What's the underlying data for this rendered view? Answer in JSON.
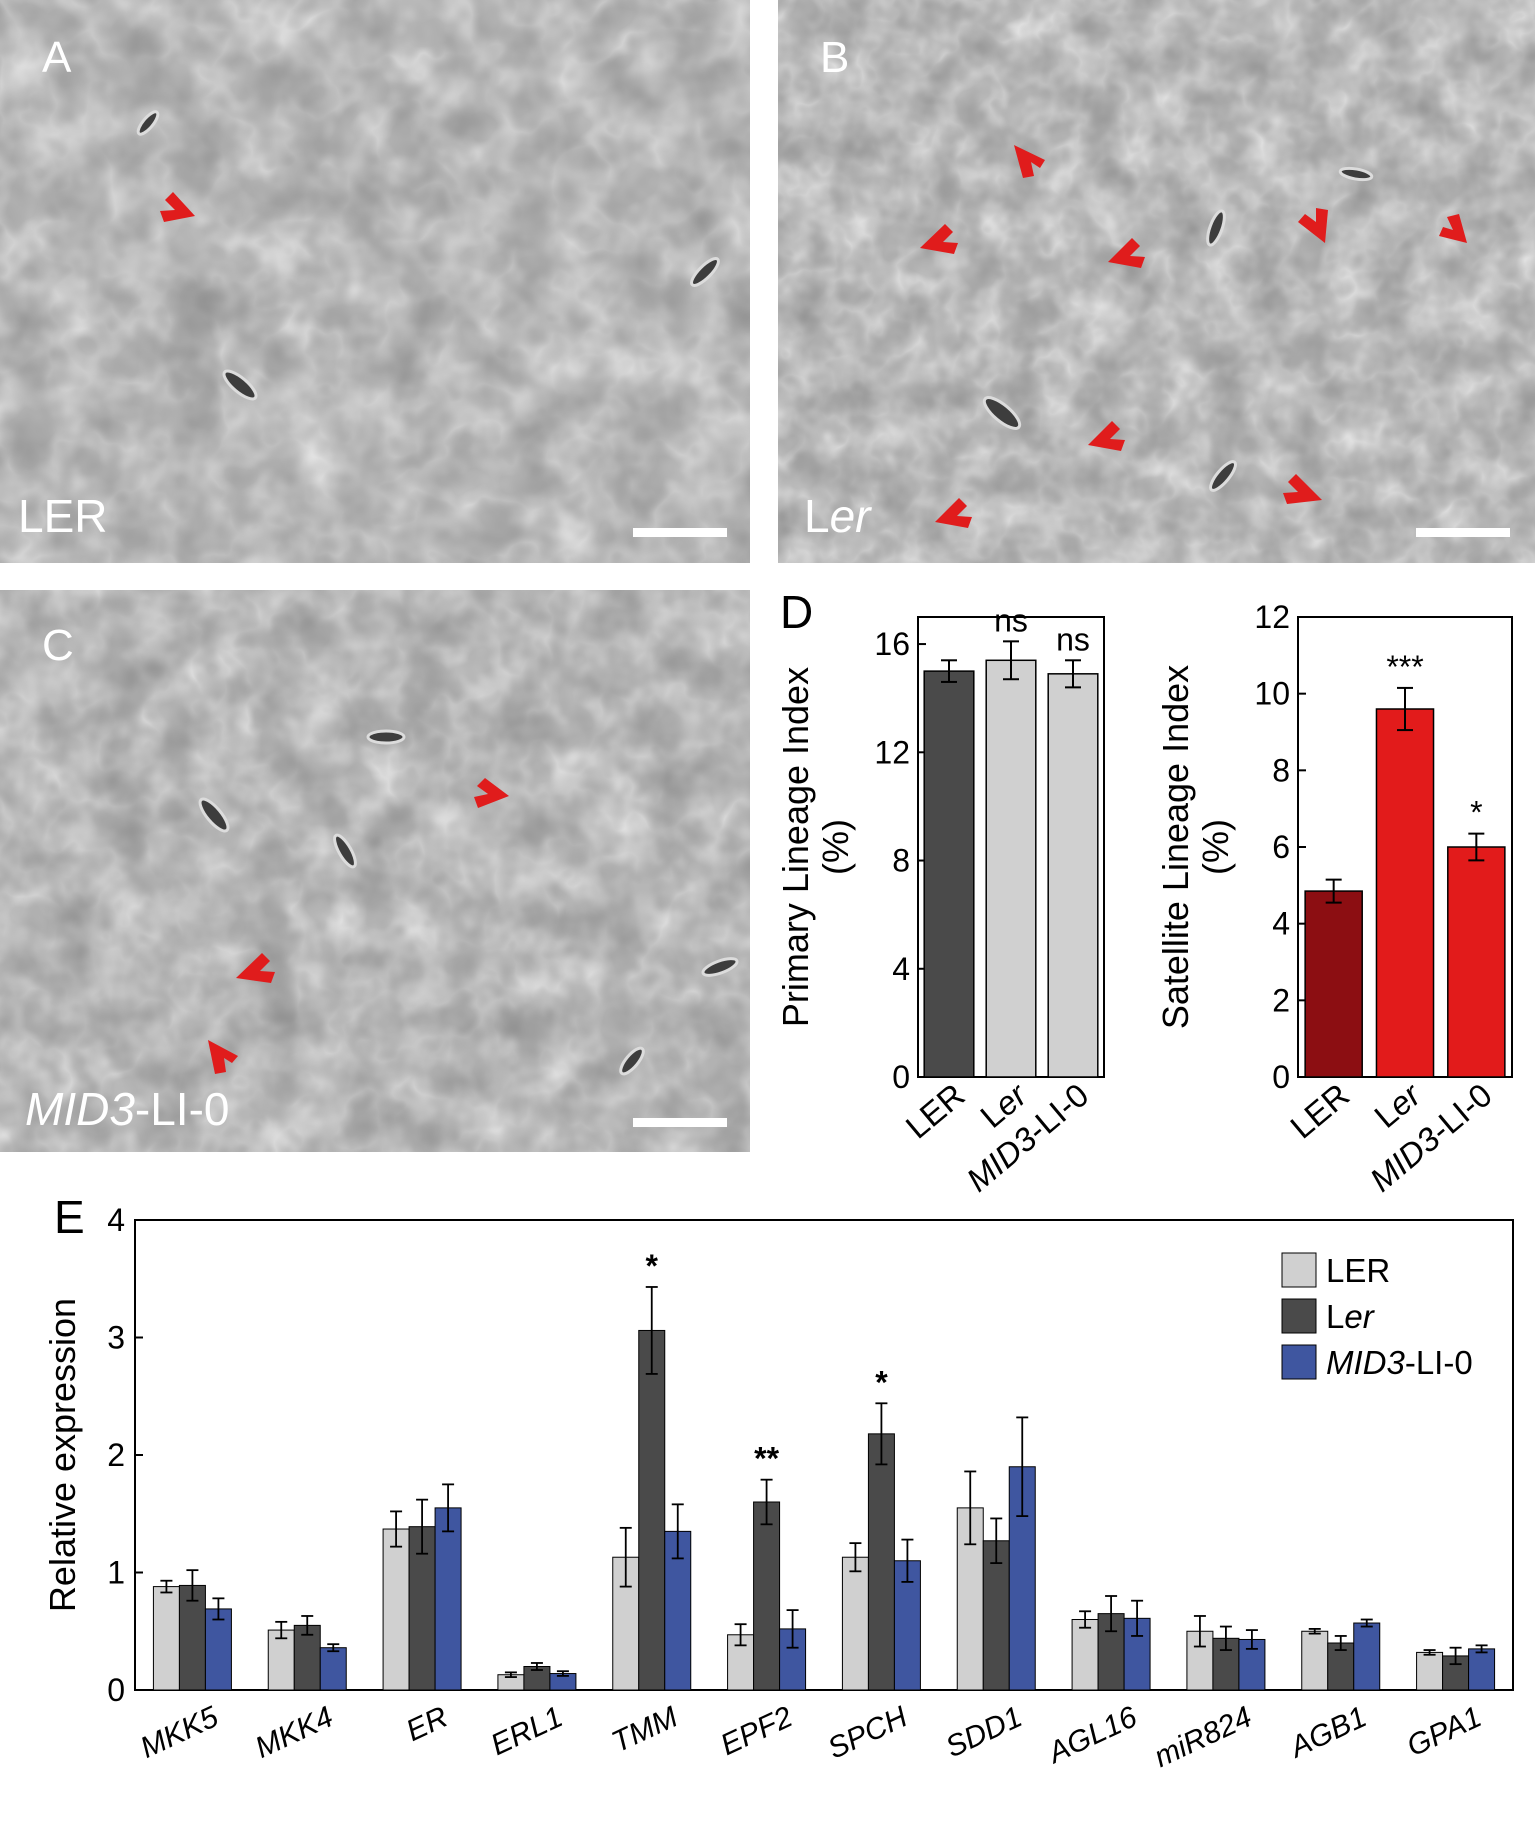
{
  "panels": {
    "A": {
      "letter": "A",
      "label": "LER"
    },
    "B": {
      "letter": "B",
      "label_plain": "L",
      "label_italic": "er"
    },
    "C": {
      "letter": "C",
      "label_italic": "MID3",
      "label_plain": "-LI-0"
    },
    "D": {
      "letter": "D"
    },
    "E": {
      "letter": "E"
    }
  },
  "colors": {
    "micrograph_bg": "#8e8e8e",
    "cell_wall": "#d4d4d4",
    "arrow": "#e01c1c",
    "dark_gray": "#4a4a4a",
    "light_gray": "#d0d0d0",
    "dark_red": "#8c0e12",
    "red": "#e21b1b",
    "blue": "#3f56a0"
  },
  "chart_data": [
    {
      "id": "D-primary",
      "type": "bar",
      "categories": [
        "LER",
        "Ler",
        "MID3-LI-0"
      ],
      "values": [
        15.0,
        15.4,
        14.9
      ],
      "errors": [
        0.4,
        0.7,
        0.5
      ],
      "significance": [
        "",
        "ns",
        "ns"
      ],
      "ylabel_line1": "Primary Lineage Index",
      "ylabel_line2": "(%)",
      "ylim": [
        0,
        17
      ],
      "yticks": [
        "0",
        "4",
        "8",
        "12",
        "16"
      ],
      "ytick_values": [
        0,
        4,
        8,
        12,
        16
      ],
      "bar_colors": [
        "#4a4a4a",
        "#d0d0d0",
        "#d0d0d0"
      ]
    },
    {
      "id": "D-satellite",
      "type": "bar",
      "categories": [
        "LER",
        "Ler",
        "MID3-LI-0"
      ],
      "values": [
        4.85,
        9.6,
        6.0
      ],
      "errors": [
        0.3,
        0.55,
        0.35
      ],
      "significance": [
        "",
        "***",
        "*"
      ],
      "ylabel_line1": "Satellite Lineage Index",
      "ylabel_line2": "(%)",
      "ylim": [
        0,
        12
      ],
      "yticks": [
        "0",
        "2",
        "4",
        "6",
        "8",
        "10",
        "12"
      ],
      "ytick_values": [
        0,
        2,
        4,
        6,
        8,
        10,
        12
      ],
      "bar_colors": [
        "#8c0e12",
        "#e21b1b",
        "#e21b1b"
      ]
    },
    {
      "id": "E-expression",
      "type": "bar",
      "ylabel": "Relative expression",
      "ylim": [
        0,
        4
      ],
      "yticks": [
        "0",
        "1",
        "2",
        "3",
        "4"
      ],
      "ytick_values": [
        0,
        1,
        2,
        3,
        4
      ],
      "categories": [
        "MKK5",
        "MKK4",
        "ER",
        "ERL1",
        "TMM",
        "EPF2",
        "SPCH",
        "SDD1",
        "AGL16",
        "miR824",
        "AGB1",
        "GPA1"
      ],
      "significance": [
        "",
        "",
        "",
        "",
        "*",
        "**",
        "*",
        "",
        "",
        "",
        "",
        ""
      ],
      "series": [
        {
          "name": "LER",
          "color": "#d0d0d0",
          "values": [
            0.88,
            0.51,
            1.37,
            0.13,
            1.13,
            0.47,
            1.13,
            1.55,
            0.6,
            0.5,
            0.5,
            0.32
          ],
          "errors": [
            0.05,
            0.07,
            0.15,
            0.02,
            0.25,
            0.09,
            0.12,
            0.31,
            0.07,
            0.13,
            0.02,
            0.02
          ]
        },
        {
          "name": "Ler",
          "name_plain": "L",
          "name_italic": "er",
          "color": "#4a4a4a",
          "values": [
            0.89,
            0.55,
            1.39,
            0.2,
            3.06,
            1.6,
            2.18,
            1.27,
            0.65,
            0.44,
            0.4,
            0.29
          ],
          "errors": [
            0.13,
            0.08,
            0.23,
            0.03,
            0.37,
            0.19,
            0.26,
            0.19,
            0.15,
            0.1,
            0.06,
            0.07
          ]
        },
        {
          "name": "MID3-LI-0",
          "name_italic": "MID3",
          "name_plain": "-LI-0",
          "color": "#3f56a0",
          "values": [
            0.69,
            0.36,
            1.55,
            0.14,
            1.35,
            0.52,
            1.1,
            1.9,
            0.61,
            0.43,
            0.57,
            0.35
          ],
          "errors": [
            0.09,
            0.03,
            0.2,
            0.02,
            0.23,
            0.16,
            0.18,
            0.42,
            0.15,
            0.08,
            0.03,
            0.03
          ]
        }
      ],
      "legend_position": "top-right"
    }
  ]
}
